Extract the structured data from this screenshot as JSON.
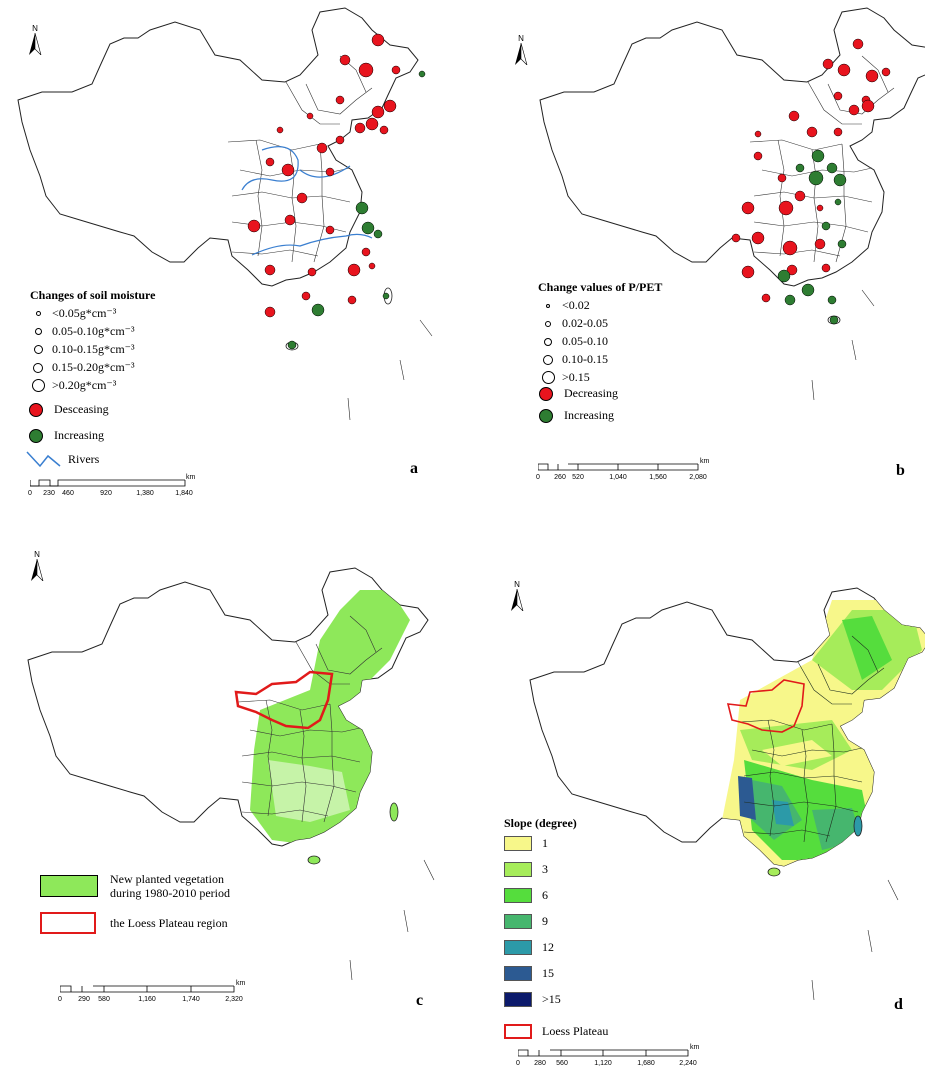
{
  "panels": {
    "a": {
      "letter": "a",
      "legend_title": "Changes of soil moisture",
      "size_classes": [
        "<0.05g*cm⁻³",
        "0.05-0.10g*cm⁻³",
        "0.10-0.15g*cm⁻³",
        "0.15-0.20g*cm⁻³",
        ">0.20g*cm⁻³"
      ],
      "decreasing_label": "Desceasing",
      "increasing_label": "Increasing",
      "rivers_label": "Rivers",
      "scale_ticks": [
        "0",
        "230",
        "460",
        "920",
        "1,380",
        "1,840"
      ],
      "scale_unit": "km",
      "north": "N"
    },
    "b": {
      "letter": "b",
      "legend_title": "Change values of P/PET",
      "size_classes": [
        "<0.02",
        "0.02-0.05",
        "0.05-0.10",
        "0.10-0.15",
        ">0.15"
      ],
      "decreasing_label": "Decreasing",
      "increasing_label": "Increasing",
      "scale_ticks": [
        "0",
        "260",
        "520",
        "1,040",
        "1,560",
        "2,080"
      ],
      "scale_unit": "km",
      "north": "N"
    },
    "c": {
      "letter": "c",
      "vegetation_label_line1": "New planted vegetation",
      "vegetation_label_line2": "during 1980-2010 period",
      "loess_label": "the Loess Plateau region",
      "scale_ticks": [
        "0",
        "290",
        "580",
        "1,160",
        "1,740",
        "2,320"
      ],
      "scale_unit": "km",
      "north": "N"
    },
    "d": {
      "letter": "d",
      "legend_title": "Slope (degree)",
      "slope_classes": [
        {
          "label": "1",
          "color": "#f7f78a"
        },
        {
          "label": "3",
          "color": "#a6ec5a"
        },
        {
          "label": "6",
          "color": "#55dd3d"
        },
        {
          "label": "9",
          "color": "#46b66e"
        },
        {
          "label": "12",
          "color": "#2c9aa8"
        },
        {
          "label": "15",
          "color": "#2c5a92"
        },
        {
          "label": ">15",
          "color": "#0c1a6b"
        }
      ],
      "loess_label": "Loess Plateau",
      "scale_ticks": [
        "0",
        "280",
        "560",
        "1,120",
        "1,680",
        "2,240"
      ],
      "scale_unit": "km",
      "north": "N"
    }
  },
  "colors": {
    "decreasing": "#e8141e",
    "increasing": "#2e7d32",
    "river": "#3a7fd0",
    "vegetation": "#8ee85a",
    "loess_outline": "#e11a1a"
  }
}
